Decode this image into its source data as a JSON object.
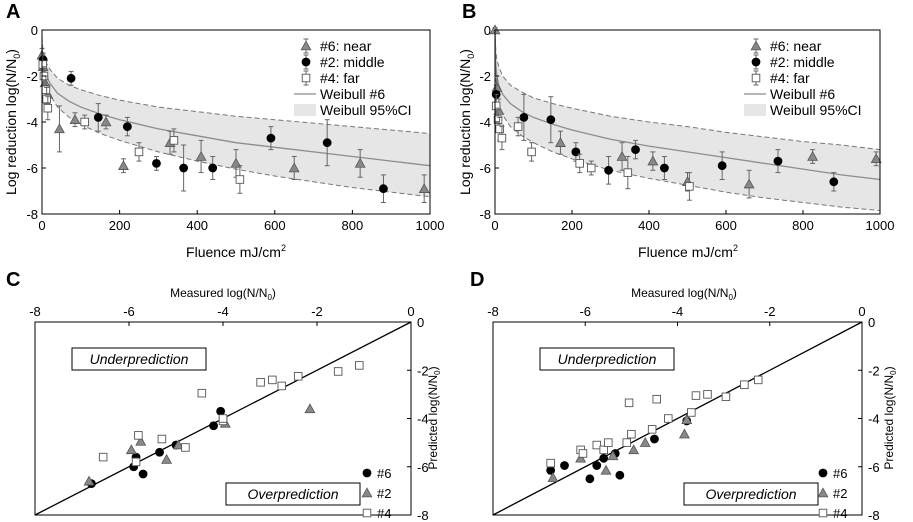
{
  "chart_data": [
    {
      "panel": "A",
      "type": "scatter",
      "xlabel_main": "Fluence mJ/cm",
      "xlabel_sup": "2",
      "ylabel_main": "Log reduction log(N/N",
      "ylabel_sub": "0",
      "ylabel_end": ")",
      "xlim": [
        0,
        1000
      ],
      "ylim": [
        -8,
        0
      ],
      "xticks": [
        0,
        200,
        400,
        600,
        800,
        1000
      ],
      "yticks": [
        0,
        -2,
        -4,
        -6,
        -8
      ],
      "legend": [
        "#6: near",
        "#2: middle",
        "#4: far",
        "Weibull #6",
        "Weibull 95%CI"
      ],
      "fit": [
        [
          0,
          -0.6
        ],
        [
          2,
          -1.2
        ],
        [
          5,
          -1.6
        ],
        [
          10,
          -1.9
        ],
        [
          20,
          -2.3
        ],
        [
          40,
          -2.75
        ],
        [
          70,
          -3.1
        ],
        [
          100,
          -3.35
        ],
        [
          150,
          -3.65
        ],
        [
          200,
          -3.9
        ],
        [
          300,
          -4.3
        ],
        [
          400,
          -4.6
        ],
        [
          500,
          -4.9
        ],
        [
          600,
          -5.1
        ],
        [
          700,
          -5.3
        ],
        [
          800,
          -5.5
        ],
        [
          900,
          -5.7
        ],
        [
          1000,
          -5.9
        ]
      ],
      "ci_upper": [
        [
          0,
          -0.3
        ],
        [
          2,
          -0.8
        ],
        [
          5,
          -1.1
        ],
        [
          10,
          -1.4
        ],
        [
          20,
          -1.7
        ],
        [
          40,
          -2.1
        ],
        [
          70,
          -2.4
        ],
        [
          100,
          -2.6
        ],
        [
          150,
          -2.85
        ],
        [
          200,
          -3.05
        ],
        [
          300,
          -3.35
        ],
        [
          400,
          -3.55
        ],
        [
          500,
          -3.75
        ],
        [
          600,
          -3.9
        ],
        [
          700,
          -4.05
        ],
        [
          800,
          -4.2
        ],
        [
          900,
          -4.35
        ],
        [
          1000,
          -4.5
        ]
      ],
      "ci_lower": [
        [
          0,
          -0.9
        ],
        [
          2,
          -1.6
        ],
        [
          5,
          -2.0
        ],
        [
          10,
          -2.4
        ],
        [
          20,
          -2.8
        ],
        [
          40,
          -3.35
        ],
        [
          70,
          -3.8
        ],
        [
          100,
          -4.1
        ],
        [
          150,
          -4.5
        ],
        [
          200,
          -4.8
        ],
        [
          300,
          -5.3
        ],
        [
          400,
          -5.7
        ],
        [
          500,
          -6.05
        ],
        [
          600,
          -6.35
        ],
        [
          700,
          -6.6
        ],
        [
          800,
          -6.85
        ],
        [
          900,
          -7.05
        ],
        [
          1000,
          -7.25
        ]
      ],
      "series": [
        {
          "name": "#6: near",
          "marker": "tri",
          "points": [
            [
              0,
              -1.1,
              0.3
            ],
            [
              3,
              -1.6,
              0.4
            ],
            [
              8,
              -2.3,
              0.4
            ],
            [
              15,
              -2.8,
              0.4
            ],
            [
              45,
              -4.3,
              1.0
            ],
            [
              85,
              -3.9,
              0.3
            ],
            [
              165,
              -4.0,
              0.3
            ],
            [
              210,
              -5.9,
              0.3
            ],
            [
              330,
              -4.9,
              0.5
            ],
            [
              410,
              -5.5,
              0.7
            ],
            [
              500,
              -5.8,
              0.6
            ],
            [
              650,
              -6.0,
              0.5
            ],
            [
              820,
              -5.8,
              0.6
            ],
            [
              985,
              -6.9,
              0.6
            ]
          ]
        },
        {
          "name": "#2: middle",
          "marker": "circle",
          "points": [
            [
              3,
              -1.3,
              0.3
            ],
            [
              75,
              -2.1,
              0.3
            ],
            [
              145,
              -3.8,
              0.6
            ],
            [
              220,
              -4.2,
              0.4
            ],
            [
              295,
              -5.8,
              0.3
            ],
            [
              365,
              -6.0,
              1.0
            ],
            [
              440,
              -6.0,
              0.5
            ],
            [
              590,
              -4.7,
              0.5
            ],
            [
              735,
              -4.9,
              1.0
            ],
            [
              880,
              -6.9,
              0.6
            ]
          ]
        },
        {
          "name": "#4: far",
          "marker": "square",
          "points": [
            [
              2,
              -1.5,
              0.4
            ],
            [
              5,
              -2.0,
              0.4
            ],
            [
              10,
              -2.6,
              0.6
            ],
            [
              12,
              -3.0,
              0.5
            ],
            [
              15,
              -3.4,
              0.5
            ],
            [
              110,
              -4.0,
              0.3
            ],
            [
              250,
              -5.3,
              0.4
            ],
            [
              340,
              -4.8,
              0.5
            ],
            [
              510,
              -6.5,
              0.6
            ]
          ]
        }
      ]
    },
    {
      "panel": "B",
      "type": "scatter",
      "xlabel_main": "Fluence mJ/cm",
      "xlabel_sup": "2",
      "ylabel_main": "Log reduction log(N/N",
      "ylabel_sub": "0",
      "ylabel_end": ")",
      "xlim": [
        0,
        1000
      ],
      "ylim": [
        -8,
        0
      ],
      "xticks": [
        0,
        200,
        400,
        600,
        800,
        1000
      ],
      "yticks": [
        0,
        -2,
        -4,
        -6,
        -8
      ],
      "legend": [
        "#6: near",
        "#2: middle",
        "#4: far",
        "Weibull #6",
        "Weibull 95%CI"
      ],
      "fit": [
        [
          0,
          0
        ],
        [
          2,
          -1.5
        ],
        [
          5,
          -2.0
        ],
        [
          10,
          -2.4
        ],
        [
          20,
          -2.8
        ],
        [
          40,
          -3.2
        ],
        [
          70,
          -3.55
        ],
        [
          100,
          -3.8
        ],
        [
          150,
          -4.1
        ],
        [
          200,
          -4.35
        ],
        [
          300,
          -4.75
        ],
        [
          400,
          -5.05
        ],
        [
          500,
          -5.3
        ],
        [
          600,
          -5.55
        ],
        [
          700,
          -5.8
        ],
        [
          800,
          -6.05
        ],
        [
          900,
          -6.3
        ],
        [
          1000,
          -6.5
        ]
      ],
      "ci_upper": [
        [
          0,
          0
        ],
        [
          2,
          -0.9
        ],
        [
          5,
          -1.3
        ],
        [
          10,
          -1.6
        ],
        [
          20,
          -2.0
        ],
        [
          40,
          -2.4
        ],
        [
          70,
          -2.7
        ],
        [
          100,
          -2.95
        ],
        [
          150,
          -3.2
        ],
        [
          200,
          -3.4
        ],
        [
          300,
          -3.75
        ],
        [
          400,
          -4.0
        ],
        [
          500,
          -4.2
        ],
        [
          600,
          -4.45
        ],
        [
          700,
          -4.65
        ],
        [
          800,
          -4.85
        ],
        [
          900,
          -5.0
        ],
        [
          1000,
          -5.2
        ]
      ],
      "ci_lower": [
        [
          0,
          0
        ],
        [
          2,
          -2.1
        ],
        [
          5,
          -2.7
        ],
        [
          10,
          -3.2
        ],
        [
          20,
          -3.7
        ],
        [
          40,
          -4.2
        ],
        [
          70,
          -4.6
        ],
        [
          100,
          -4.9
        ],
        [
          150,
          -5.3
        ],
        [
          200,
          -5.6
        ],
        [
          300,
          -6.1
        ],
        [
          400,
          -6.45
        ],
        [
          500,
          -6.75
        ],
        [
          600,
          -7.05
        ],
        [
          700,
          -7.3
        ],
        [
          800,
          -7.5
        ],
        [
          900,
          -7.7
        ],
        [
          1000,
          -7.85
        ]
      ],
      "series": [
        {
          "name": "#6: near",
          "marker": "tri",
          "points": [
            [
              0,
              0,
              0.1
            ],
            [
              5,
              -2.5,
              0.5
            ],
            [
              10,
              -3.5,
              0.5
            ],
            [
              170,
              -4.9,
              0.5
            ],
            [
              330,
              -5.5,
              0.6
            ],
            [
              410,
              -5.7,
              0.4
            ],
            [
              500,
              -6.6,
              0.4
            ],
            [
              660,
              -6.7,
              0.6
            ],
            [
              825,
              -5.5,
              0.3
            ],
            [
              990,
              -5.6,
              0.3
            ]
          ]
        },
        {
          "name": "#2: middle",
          "marker": "circle",
          "points": [
            [
              3,
              -2.8,
              0.4
            ],
            [
              75,
              -3.8,
              1.0
            ],
            [
              145,
              -3.9,
              1.0
            ],
            [
              210,
              -5.3,
              0.4
            ],
            [
              295,
              -6.1,
              0.6
            ],
            [
              365,
              -5.2,
              0.4
            ],
            [
              440,
              -6.0,
              0.5
            ],
            [
              590,
              -5.9,
              0.6
            ],
            [
              735,
              -5.7,
              0.5
            ],
            [
              880,
              -6.6,
              0.4
            ]
          ]
        },
        {
          "name": "#4: far",
          "marker": "square",
          "points": [
            [
              3,
              -3.3,
              0.5
            ],
            [
              8,
              -3.9,
              0.5
            ],
            [
              12,
              -4.3,
              0.5
            ],
            [
              18,
              -4.7,
              0.5
            ],
            [
              60,
              -4.2,
              0.4
            ],
            [
              95,
              -5.3,
              0.4
            ],
            [
              220,
              -5.8,
              0.4
            ],
            [
              250,
              -6.0,
              0.3
            ],
            [
              345,
              -6.2,
              0.7
            ],
            [
              505,
              -6.8,
              0.6
            ]
          ]
        }
      ]
    },
    {
      "panel": "C",
      "type": "scatter",
      "top_xlabel_main": "Measured log(N/N",
      "top_xlabel_sub": "0",
      "top_xlabel_end": ")",
      "right_ylabel_main": "Predicted log(N/N",
      "right_ylabel_sub": "0",
      "right_ylabel_end": ")",
      "xlim": [
        -8,
        0
      ],
      "ylim": [
        -8,
        0
      ],
      "xticks": [
        -8,
        -6,
        -4,
        -2,
        0
      ],
      "yticks": [
        0,
        -2,
        -4,
        -6,
        -8
      ],
      "annotations": [
        "Underprediction",
        "Overprediction"
      ],
      "legend": [
        "#6",
        "#2",
        "#4"
      ],
      "series": [
        {
          "name": "#6",
          "marker": "circle",
          "points": [
            [
              -6.8,
              -6.7
            ],
            [
              -5.9,
              -6.0
            ],
            [
              -5.85,
              -5.6
            ],
            [
              -5.7,
              -6.3
            ],
            [
              -5.35,
              -5.4
            ],
            [
              -5.0,
              -5.1
            ],
            [
              -4.2,
              -4.3
            ],
            [
              -4.05,
              -3.7
            ]
          ]
        },
        {
          "name": "#2",
          "marker": "tri",
          "points": [
            [
              -6.85,
              -6.6
            ],
            [
              -5.95,
              -5.3
            ],
            [
              -5.75,
              -4.95
            ],
            [
              -5.2,
              -5.7
            ],
            [
              -4.95,
              -5.1
            ],
            [
              -3.95,
              -4.2
            ],
            [
              -2.15,
              -3.6
            ]
          ]
        },
        {
          "name": "#4",
          "marker": "square",
          "points": [
            [
              -6.55,
              -5.6
            ],
            [
              -5.85,
              -5.8
            ],
            [
              -5.8,
              -4.7
            ],
            [
              -5.3,
              -4.85
            ],
            [
              -4.8,
              -5.2
            ],
            [
              -4.0,
              -4.1
            ],
            [
              -4.0,
              -4.0
            ],
            [
              -3.2,
              -2.5
            ],
            [
              -2.95,
              -2.4
            ],
            [
              -2.75,
              -2.65
            ],
            [
              -2.4,
              -2.25
            ],
            [
              -1.55,
              -2.05
            ],
            [
              -1.1,
              -1.8
            ],
            [
              -4.45,
              -2.95
            ]
          ]
        }
      ]
    },
    {
      "panel": "D",
      "type": "scatter",
      "top_xlabel_main": "Measured log(N/N",
      "top_xlabel_sub": "0",
      "top_xlabel_end": ")",
      "right_ylabel_main": "Predicted log(N/N",
      "right_ylabel_sub": "0",
      "right_ylabel_end": ")",
      "xlim": [
        -8,
        0
      ],
      "ylim": [
        -8,
        0
      ],
      "xticks": [
        -8,
        -6,
        -4,
        -2,
        0
      ],
      "yticks": [
        0,
        -2,
        -4,
        -6,
        -8
      ],
      "annotations": [
        "Underprediction",
        "Overprediction"
      ],
      "legend": [
        "#6",
        "#2",
        "#4"
      ],
      "series": [
        {
          "name": "#6",
          "marker": "circle",
          "points": [
            [
              -6.75,
              -6.15
            ],
            [
              -6.45,
              -5.95
            ],
            [
              -5.9,
              -6.5
            ],
            [
              -5.75,
              -5.95
            ],
            [
              -5.6,
              -5.65
            ],
            [
              -5.35,
              -5.45
            ],
            [
              -5.25,
              -6.35
            ],
            [
              -4.5,
              -4.85
            ],
            [
              -3.8,
              -4.1
            ]
          ]
        },
        {
          "name": "#2",
          "marker": "tri",
          "points": [
            [
              -6.7,
              -6.45
            ],
            [
              -6.1,
              -5.65
            ],
            [
              -5.55,
              -6.15
            ],
            [
              -5.4,
              -5.55
            ],
            [
              -4.95,
              -5.3
            ],
            [
              -4.7,
              -5.0
            ],
            [
              -3.85,
              -4.65
            ],
            [
              -3.8,
              -4.05
            ]
          ]
        },
        {
          "name": "#4",
          "marker": "square",
          "points": [
            [
              -6.75,
              -5.85
            ],
            [
              -6.1,
              -5.3
            ],
            [
              -6.05,
              -5.45
            ],
            [
              -5.75,
              -5.1
            ],
            [
              -5.6,
              -5.3
            ],
            [
              -5.5,
              -5.0
            ],
            [
              -5.1,
              -5.0
            ],
            [
              -5.0,
              -4.65
            ],
            [
              -4.55,
              -4.45
            ],
            [
              -4.2,
              -4.0
            ],
            [
              -3.7,
              -3.75
            ],
            [
              -3.35,
              -3.0
            ],
            [
              -2.95,
              -3.1
            ],
            [
              -4.45,
              -3.2
            ],
            [
              -3.6,
              -3.05
            ],
            [
              -2.55,
              -2.6
            ],
            [
              -2.25,
              -2.4
            ],
            [
              -5.05,
              -3.35
            ]
          ]
        }
      ]
    }
  ],
  "colors": {
    "tri": "#888888",
    "circle": "#000000",
    "square": "#ffffff",
    "ci_fill": "#e6e6e6",
    "fit_line": "#8c8c8c"
  }
}
